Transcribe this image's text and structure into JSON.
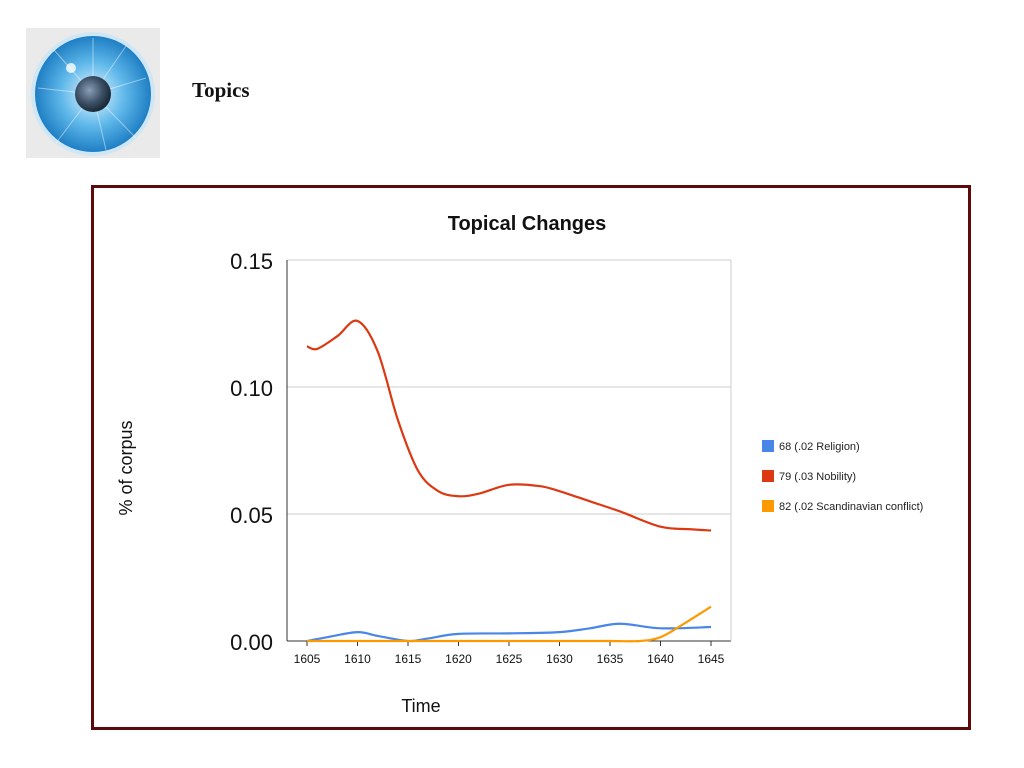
{
  "header": {
    "title": "Topics",
    "logo_icon": "eye-iris-icon"
  },
  "chart_data": {
    "type": "line",
    "title": "Topical Changes",
    "xlabel": "Time",
    "ylabel": "% of corpus",
    "categories": [
      "1605",
      "1610",
      "1615",
      "1620",
      "1625",
      "1630",
      "1635",
      "1640",
      "1645"
    ],
    "ylim": [
      0,
      0.15
    ],
    "yticks": [
      "0.00",
      "0.05",
      "0.10",
      "0.15"
    ],
    "grid": true,
    "legend_position": "right",
    "series": [
      {
        "name": "68 (.02 Religion)",
        "color": "#4a86e8",
        "x": [
          1605,
          1607,
          1610,
          1612,
          1615,
          1617,
          1620,
          1625,
          1630,
          1633,
          1636,
          1640,
          1645
        ],
        "values": [
          0.0,
          0.0015,
          0.0035,
          0.002,
          0.0,
          0.001,
          0.0028,
          0.003,
          0.0035,
          0.005,
          0.0068,
          0.005,
          0.0055
        ]
      },
      {
        "name": "79 (.03 Nobility)",
        "color": "#dc3912",
        "x": [
          1605,
          1606,
          1608,
          1610,
          1612,
          1614,
          1616,
          1618,
          1620,
          1622,
          1625,
          1628,
          1630,
          1633,
          1636,
          1640,
          1643,
          1645
        ],
        "values": [
          0.116,
          0.115,
          0.12,
          0.126,
          0.114,
          0.087,
          0.067,
          0.059,
          0.057,
          0.058,
          0.0615,
          0.061,
          0.059,
          0.055,
          0.051,
          0.045,
          0.044,
          0.0435
        ]
      },
      {
        "name": "82 (.02 Scandinavian conflict)",
        "color": "#ff9900",
        "x": [
          1605,
          1610,
          1615,
          1620,
          1625,
          1630,
          1635,
          1638,
          1640,
          1642,
          1645
        ],
        "values": [
          0.0,
          0.0,
          0.0,
          0.0,
          0.0,
          0.0,
          0.0,
          0.0,
          0.0015,
          0.006,
          0.0135
        ]
      }
    ]
  }
}
